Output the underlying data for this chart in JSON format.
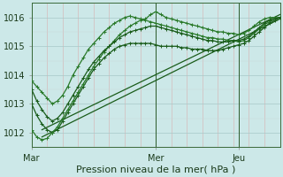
{
  "title": "",
  "xlabel": "Pression niveau de la mer( hPa )",
  "ylabel": "",
  "bg_color": "#cce8e8",
  "grid_color_minor": "#e8c8c8",
  "grid_color_major": "#a8c8c8",
  "line_color_dark": "#1a5c1a",
  "line_color_med": "#2a7a2a",
  "xlim": [
    0,
    96
  ],
  "ylim": [
    1011.5,
    1016.5
  ],
  "yticks": [
    1012,
    1013,
    1014,
    1015,
    1016
  ],
  "xtick_positions": [
    0,
    48,
    80
  ],
  "xtick_labels": [
    "Mar",
    "Mer",
    "Jeu"
  ],
  "vline_positions": [
    0,
    48,
    80
  ],
  "figsize": [
    3.2,
    2.0
  ],
  "dpi": 100,
  "series1_x": [
    0,
    2,
    4,
    6,
    8,
    10,
    12,
    14,
    16,
    18,
    20,
    22,
    24,
    26,
    28,
    30,
    32,
    34,
    36,
    38,
    40,
    42,
    44,
    46,
    48,
    50,
    52,
    54,
    56,
    58,
    60,
    62,
    64,
    66,
    68,
    70,
    72,
    74,
    76,
    78,
    80,
    82,
    84,
    86,
    88,
    90,
    92,
    94,
    96
  ],
  "series1_y": [
    1013.8,
    1013.6,
    1013.4,
    1013.2,
    1013.0,
    1013.1,
    1013.3,
    1013.6,
    1014.0,
    1014.3,
    1014.6,
    1014.9,
    1015.1,
    1015.3,
    1015.5,
    1015.65,
    1015.8,
    1015.9,
    1016.0,
    1016.05,
    1016.0,
    1015.95,
    1015.9,
    1015.85,
    1015.8,
    1015.75,
    1015.7,
    1015.65,
    1015.6,
    1015.55,
    1015.5,
    1015.45,
    1015.4,
    1015.35,
    1015.3,
    1015.3,
    1015.25,
    1015.25,
    1015.2,
    1015.2,
    1015.15,
    1015.2,
    1015.3,
    1015.45,
    1015.6,
    1015.75,
    1015.85,
    1015.95,
    1016.0
  ],
  "series2_x": [
    0,
    2,
    4,
    6,
    8,
    10,
    12,
    14,
    16,
    18,
    20,
    22,
    24,
    26,
    28,
    30,
    32,
    34,
    36,
    38,
    40,
    42,
    44,
    46,
    48,
    50,
    52,
    54,
    56,
    58,
    60,
    62,
    64,
    66,
    68,
    70,
    72,
    74,
    76,
    78,
    80,
    82,
    84,
    86,
    88,
    90,
    92,
    94,
    96
  ],
  "series2_y": [
    1013.0,
    1012.6,
    1012.3,
    1012.1,
    1012.0,
    1012.1,
    1012.4,
    1012.7,
    1013.0,
    1013.3,
    1013.6,
    1013.9,
    1014.2,
    1014.4,
    1014.6,
    1014.75,
    1014.9,
    1015.0,
    1015.05,
    1015.1,
    1015.1,
    1015.1,
    1015.1,
    1015.1,
    1015.05,
    1015.0,
    1015.0,
    1015.0,
    1015.0,
    1014.95,
    1014.95,
    1014.9,
    1014.9,
    1014.9,
    1014.85,
    1014.85,
    1014.85,
    1014.9,
    1014.95,
    1015.0,
    1015.05,
    1015.1,
    1015.2,
    1015.35,
    1015.5,
    1015.65,
    1015.8,
    1015.9,
    1016.0
  ],
  "series3_x": [
    0,
    2,
    4,
    6,
    8,
    10,
    12,
    14,
    16,
    18,
    20,
    22,
    24,
    26,
    28,
    30,
    32,
    34,
    36,
    38,
    40,
    42,
    44,
    46,
    48,
    50,
    52,
    54,
    56,
    58,
    60,
    62,
    64,
    66,
    68,
    70,
    72,
    74,
    76,
    78,
    80,
    82,
    84,
    86,
    88,
    90,
    92,
    94,
    96
  ],
  "series3_y": [
    1012.1,
    1011.85,
    1011.75,
    1011.8,
    1012.0,
    1012.2,
    1012.5,
    1012.8,
    1013.1,
    1013.4,
    1013.7,
    1014.0,
    1014.3,
    1014.55,
    1014.8,
    1015.0,
    1015.2,
    1015.4,
    1015.55,
    1015.7,
    1015.8,
    1015.9,
    1015.95,
    1016.1,
    1016.2,
    1016.1,
    1016.0,
    1015.95,
    1015.9,
    1015.85,
    1015.8,
    1015.75,
    1015.7,
    1015.65,
    1015.6,
    1015.55,
    1015.5,
    1015.5,
    1015.45,
    1015.45,
    1015.4,
    1015.45,
    1015.55,
    1015.7,
    1015.85,
    1015.95,
    1016.0,
    1016.0,
    1016.0
  ],
  "series4_x": [
    0,
    2,
    4,
    6,
    8,
    10,
    12,
    14,
    16,
    18,
    20,
    22,
    24,
    26,
    28,
    30,
    32,
    34,
    36,
    38,
    40,
    42,
    44,
    46,
    48,
    50,
    52,
    54,
    56,
    58,
    60,
    62,
    64,
    66,
    68,
    70,
    72,
    74,
    76,
    78,
    80,
    82,
    84,
    86,
    88,
    90,
    92,
    94,
    96
  ],
  "series4_y": [
    1013.5,
    1013.1,
    1012.8,
    1012.55,
    1012.4,
    1012.5,
    1012.7,
    1013.0,
    1013.3,
    1013.6,
    1013.9,
    1014.2,
    1014.45,
    1014.65,
    1014.85,
    1015.0,
    1015.15,
    1015.3,
    1015.4,
    1015.5,
    1015.55,
    1015.6,
    1015.65,
    1015.7,
    1015.7,
    1015.65,
    1015.6,
    1015.55,
    1015.5,
    1015.45,
    1015.4,
    1015.35,
    1015.3,
    1015.25,
    1015.2,
    1015.2,
    1015.15,
    1015.15,
    1015.15,
    1015.2,
    1015.2,
    1015.25,
    1015.35,
    1015.5,
    1015.65,
    1015.8,
    1015.9,
    1015.95,
    1016.0
  ],
  "trendline1_x": [
    4,
    96
  ],
  "trendline1_y": [
    1011.85,
    1015.95
  ],
  "trendline2_x": [
    4,
    96
  ],
  "trendline2_y": [
    1012.1,
    1016.1
  ]
}
